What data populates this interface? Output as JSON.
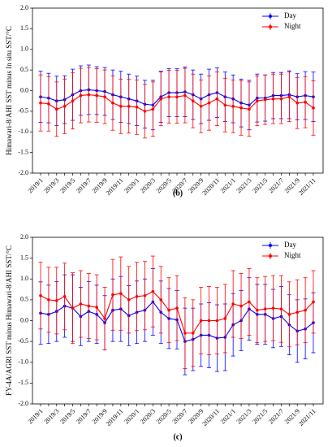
{
  "chart_data": [
    {
      "type": "line",
      "ylabel": "Himawari-8/AHI SST minus In situ SST/°C",
      "caption": "(b)",
      "legend": "upper right",
      "categories": [
        "2019/1",
        null,
        "2019/3",
        null,
        "2019/5",
        null,
        "2019/7",
        null,
        "2019/9",
        null,
        "2019/11",
        null,
        "2020/1",
        null,
        "2020/3",
        null,
        "2020/5",
        null,
        "2020/7",
        null,
        "2020/9",
        null,
        "2020/11",
        null,
        "2021/1",
        null,
        "2021/3",
        null,
        "2021/5",
        null,
        "2021/7",
        null,
        "2021/9",
        null,
        "2021/11"
      ],
      "ylim": [
        -2,
        2
      ],
      "yticks": [
        {
          "value": -2,
          "label": "-2.0"
        },
        {
          "value": -1.5,
          "label": "-1.5"
        },
        {
          "value": -1,
          "label": "-1.0"
        },
        {
          "value": -0.5,
          "label": "-0.5"
        },
        {
          "value": 0,
          "label": "0.0"
        },
        {
          "value": 0.5,
          "label": "0.5"
        },
        {
          "value": 1,
          "label": "1.0"
        },
        {
          "value": 1.5,
          "label": "1.5"
        },
        {
          "value": 2,
          "label": "2.0"
        }
      ],
      "series": [
        {
          "name": "Day",
          "color": "#0000ff",
          "values": [
            -0.15,
            -0.18,
            -0.25,
            -0.22,
            -0.1,
            0,
            0.02,
            0,
            -0.02,
            -0.1,
            -0.15,
            -0.2,
            -0.25,
            -0.33,
            -0.35,
            -0.15,
            -0.05,
            -0.05,
            -0.03,
            -0.1,
            -0.2,
            -0.1,
            -0.05,
            -0.15,
            -0.2,
            -0.3,
            -0.35,
            -0.18,
            -0.18,
            -0.12,
            -0.12,
            -0.1,
            -0.15,
            -0.12,
            -0.15
          ],
          "errors": [
            0.62,
            0.6,
            0.6,
            0.58,
            0.62,
            0.6,
            0.6,
            0.58,
            0.58,
            0.6,
            0.62,
            0.6,
            0.6,
            0.58,
            0.6,
            0.62,
            0.58,
            0.58,
            0.6,
            0.6,
            0.6,
            0.62,
            0.6,
            0.6,
            0.58,
            0.58,
            0.6,
            0.58,
            0.56,
            0.56,
            0.56,
            0.58,
            0.56,
            0.58,
            0.6
          ]
        },
        {
          "name": "Night",
          "color": "#ff0000",
          "values": [
            -0.3,
            -0.32,
            -0.45,
            -0.38,
            -0.25,
            -0.12,
            -0.1,
            -0.12,
            -0.15,
            -0.3,
            -0.38,
            -0.38,
            -0.4,
            -0.5,
            -0.45,
            -0.2,
            -0.15,
            -0.15,
            -0.12,
            -0.25,
            -0.38,
            -0.3,
            -0.2,
            -0.35,
            -0.38,
            -0.42,
            -0.45,
            -0.25,
            -0.22,
            -0.2,
            -0.2,
            -0.15,
            -0.3,
            -0.28,
            -0.42
          ],
          "errors": [
            0.68,
            0.66,
            0.66,
            0.66,
            0.68,
            0.66,
            0.66,
            0.65,
            0.65,
            0.66,
            0.66,
            0.65,
            0.66,
            0.65,
            0.66,
            0.65,
            0.64,
            0.64,
            0.66,
            0.65,
            0.64,
            0.66,
            0.65,
            0.65,
            0.64,
            0.66,
            0.66,
            0.6,
            0.6,
            0.6,
            0.6,
            0.6,
            0.62,
            0.62,
            0.66
          ]
        }
      ]
    },
    {
      "type": "line",
      "ylabel": "FY-4A/AGRI SST minus Himawari-8/AHI SST/°C",
      "caption": "(c)",
      "legend": "upper right",
      "categories": [
        "2019/1",
        null,
        "2019/3",
        null,
        "2019/5",
        null,
        "2019/7",
        null,
        "2019/9",
        null,
        "2019/11",
        null,
        "2020/1",
        null,
        "2020/3",
        null,
        "2020/5",
        null,
        "2020/7",
        null,
        "2020/9",
        null,
        "2020/11",
        null,
        "2021/1",
        null,
        "2021/3",
        null,
        "2021/5",
        null,
        "2021/7",
        null,
        "2021/9",
        null,
        "2021/11"
      ],
      "ylim": [
        -2,
        2
      ],
      "yticks": [
        {
          "value": -2,
          "label": "-2.0"
        },
        {
          "value": -1.5,
          "label": "-1.5"
        },
        {
          "value": -1,
          "label": "-1.0"
        },
        {
          "value": -0.5,
          "label": "-0.5"
        },
        {
          "value": 0,
          "label": "0.0"
        },
        {
          "value": 0.5,
          "label": "0.5"
        },
        {
          "value": 1,
          "label": "1.0"
        },
        {
          "value": 1.5,
          "label": "1.5"
        },
        {
          "value": 2,
          "label": "2.0"
        }
      ],
      "series": [
        {
          "name": "Day",
          "color": "#0000ff",
          "values": [
            0.18,
            0.15,
            0.22,
            0.35,
            0.3,
            0.1,
            0.22,
            0.15,
            -0.05,
            0.25,
            0.28,
            0.12,
            0.2,
            0.25,
            0.45,
            0.2,
            0.05,
            0.02,
            -0.5,
            -0.45,
            -0.35,
            -0.35,
            -0.42,
            -0.4,
            -0.1,
            0,
            0.28,
            0.15,
            0.15,
            0.05,
            0.1,
            -0.1,
            -0.25,
            -0.2,
            -0.05
          ],
          "errors": [
            0.75,
            0.7,
            0.72,
            0.75,
            0.8,
            0.7,
            0.72,
            0.7,
            0.65,
            0.75,
            0.78,
            0.72,
            0.75,
            0.75,
            0.8,
            0.75,
            0.72,
            0.7,
            0.8,
            0.75,
            0.75,
            0.78,
            0.8,
            0.8,
            0.75,
            0.72,
            0.75,
            0.72,
            0.72,
            0.7,
            0.72,
            0.72,
            0.75,
            0.72,
            0.72
          ]
        },
        {
          "name": "Night",
          "color": "#ff0000",
          "values": [
            0.6,
            0.5,
            0.48,
            0.58,
            0.3,
            0.4,
            0.35,
            0.32,
            0.05,
            0.62,
            0.65,
            0.5,
            0.58,
            0.6,
            0.7,
            0.5,
            0.25,
            0.3,
            -0.3,
            -0.3,
            0,
            0,
            0,
            0.05,
            0.4,
            0.35,
            0.45,
            0.25,
            0.28,
            0.3,
            0.28,
            0.15,
            0.2,
            0.25,
            0.45
          ],
          "errors": [
            0.8,
            0.78,
            0.8,
            0.8,
            0.85,
            0.8,
            0.78,
            0.78,
            0.75,
            0.85,
            0.88,
            0.8,
            0.82,
            0.82,
            0.85,
            0.8,
            0.78,
            0.78,
            0.85,
            0.8,
            0.8,
            0.82,
            0.8,
            0.82,
            0.8,
            0.78,
            0.8,
            0.78,
            0.78,
            0.78,
            0.8,
            0.78,
            0.78,
            0.78,
            0.75
          ]
        }
      ]
    }
  ]
}
